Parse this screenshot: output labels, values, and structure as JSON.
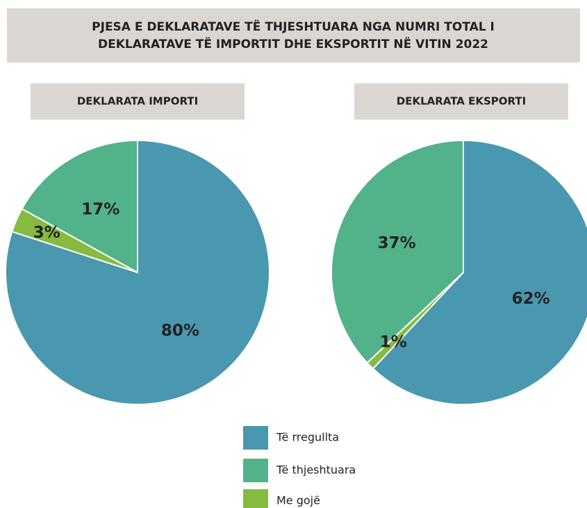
{
  "title": [
    "PJESA E DEKLARATAVE TË THJESHTUARA NGA NUMRI TOTAL I",
    "DEKLARATAVE TË IMPORTIT DHE EKSPORTIT NË VITIN 2022"
  ],
  "chart_data": [
    {
      "type": "pie",
      "title": "DEKLARATA IMPORTI",
      "categories": [
        "Të rregullta",
        "Me gojë",
        "Të thjeshtuara"
      ],
      "values": [
        80,
        3,
        17
      ],
      "value_labels": [
        "80%",
        "3%",
        "17%"
      ],
      "colors": [
        "#4a97b0",
        "#86bb3f",
        "#52b38a"
      ]
    },
    {
      "type": "pie",
      "title": "DEKLARATA EKSPORTI",
      "categories": [
        "Të rregullta",
        "Me gojë",
        "Të thjeshtuara"
      ],
      "values": [
        62,
        1,
        37
      ],
      "value_labels": [
        "62%",
        "1%",
        "37%"
      ],
      "colors": [
        "#4a97b0",
        "#86bb3f",
        "#52b38a"
      ]
    }
  ]
}
